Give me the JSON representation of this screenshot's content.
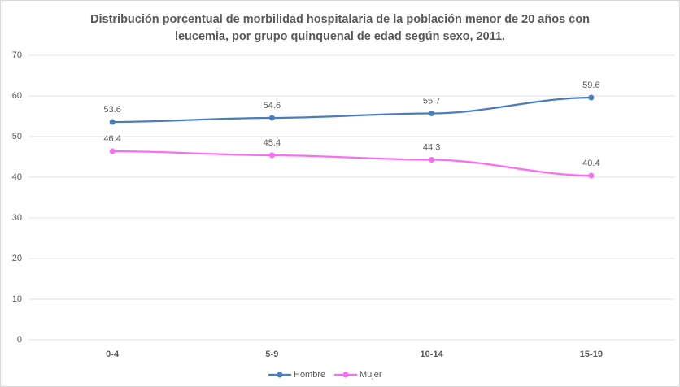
{
  "chart_data": {
    "type": "line",
    "title": "Distribución porcentual de morbilidad hospitalaria de la población menor de 20 años con leucemia, por grupo quinquenal de edad según sexo, 2011.",
    "categories": [
      "0-4",
      "5-9",
      "10-14",
      "15-19"
    ],
    "series": [
      {
        "name": "Hombre",
        "color": "#4a7ebb",
        "values": [
          53.6,
          54.6,
          55.7,
          59.6
        ]
      },
      {
        "name": "Mujer",
        "color": "#f76ef2",
        "values": [
          46.4,
          45.4,
          44.3,
          40.4
        ]
      }
    ],
    "ylim": [
      0,
      70
    ],
    "yticks": [
      0,
      10,
      20,
      30,
      40,
      50,
      60,
      70
    ],
    "grid": true,
    "legend": "bottom"
  }
}
